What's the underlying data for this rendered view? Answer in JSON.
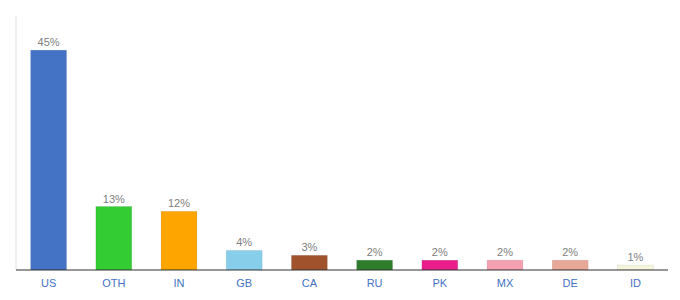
{
  "chart_data": {
    "type": "bar",
    "categories": [
      "US",
      "OTH",
      "IN",
      "GB",
      "CA",
      "RU",
      "PK",
      "MX",
      "DE",
      "ID"
    ],
    "values": [
      45,
      13,
      12,
      4,
      3,
      2,
      2,
      2,
      2,
      1
    ],
    "value_labels": [
      "45%",
      "13%",
      "12%",
      "4%",
      "3%",
      "2%",
      "2%",
      "2%",
      "2%",
      "1%"
    ],
    "colors": [
      "#4472c4",
      "#33cc33",
      "#ffa500",
      "#87ceeb",
      "#a0522d",
      "#2d7d2d",
      "#e91e8c",
      "#f4a0b0",
      "#e8a898",
      "#f5f5dc"
    ],
    "ylim": [
      0,
      52
    ],
    "data_labels": true,
    "tick_labels": "x"
  }
}
